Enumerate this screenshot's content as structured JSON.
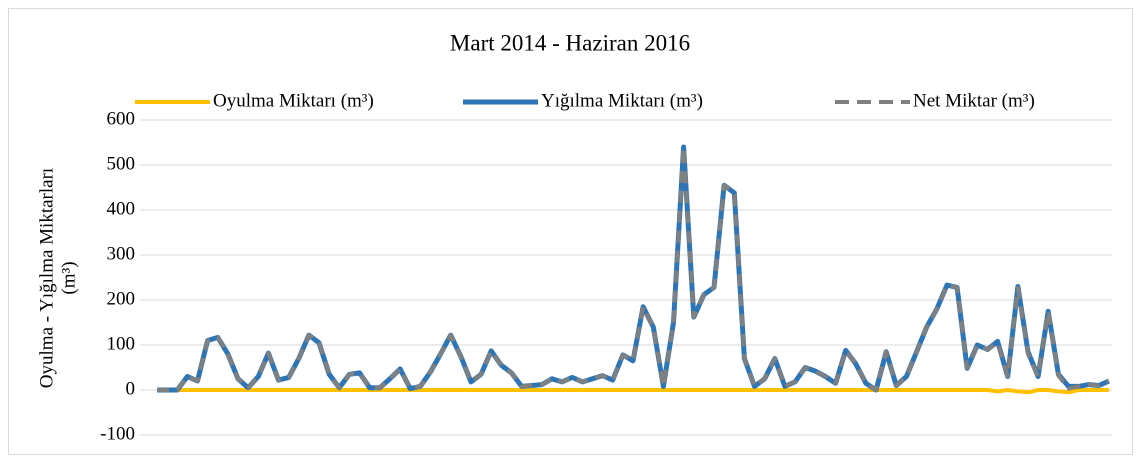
{
  "chart_data": {
    "type": "line",
    "title": "Mart 2014 - Haziran 2016",
    "ylabel": [
      "Oyulma - Yığılma Miktarları",
      "(m³)"
    ],
    "ylim": [
      -100,
      600
    ],
    "yticks": [
      -100,
      0,
      100,
      200,
      300,
      400,
      500,
      600
    ],
    "grid": true,
    "legend": "top",
    "series": [
      {
        "name": "Oyulma Miktarı (m³)",
        "color": "#ffc000",
        "dash": false,
        "values": [
          0,
          0,
          0,
          0,
          0,
          0,
          0,
          0,
          0,
          0,
          0,
          0,
          0,
          0,
          0,
          0,
          0,
          0,
          0,
          0,
          0,
          0,
          0,
          0,
          0,
          0,
          0,
          0,
          0,
          0,
          0,
          0,
          0,
          0,
          0,
          0,
          0,
          0,
          0,
          0,
          0,
          0,
          0,
          0,
          0,
          0,
          0,
          0,
          0,
          0,
          0,
          0,
          0,
          0,
          0,
          0,
          0,
          0,
          0,
          0,
          0,
          0,
          0,
          0,
          0,
          0,
          0,
          0,
          0,
          0,
          0,
          0,
          0,
          0,
          0,
          0,
          0,
          0,
          0,
          0,
          0,
          0,
          0,
          -3,
          0,
          -3,
          -5,
          0,
          0,
          -3,
          -5,
          0,
          0,
          0,
          0
        ]
      },
      {
        "name": "Yığılma Miktarı (m³)",
        "color": "#2e75b6",
        "dash": false,
        "values": [
          0,
          0,
          0,
          30,
          20,
          110,
          117,
          80,
          25,
          5,
          30,
          82,
          22,
          28,
          70,
          122,
          105,
          35,
          5,
          35,
          38,
          5,
          5,
          25,
          47,
          3,
          8,
          40,
          80,
          122,
          75,
          18,
          35,
          87,
          55,
          38,
          8,
          10,
          12,
          25,
          18,
          28,
          18,
          25,
          32,
          22,
          78,
          65,
          185,
          140,
          8,
          150,
          540,
          162,
          212,
          228,
          455,
          438,
          70,
          8,
          25,
          70,
          8,
          18,
          50,
          42,
          30,
          15,
          88,
          58,
          15,
          0,
          85,
          10,
          30,
          85,
          140,
          180,
          233,
          228,
          48,
          100,
          90,
          108,
          30,
          230,
          85,
          30,
          175,
          35,
          8,
          8,
          12,
          10,
          20
        ]
      },
      {
        "name": "Net Miktar (m³)",
        "color": "#808080",
        "dash": true,
        "values": [
          0,
          0,
          0,
          30,
          20,
          110,
          117,
          80,
          25,
          5,
          30,
          82,
          22,
          28,
          70,
          122,
          105,
          35,
          5,
          35,
          38,
          5,
          5,
          25,
          47,
          3,
          8,
          40,
          80,
          122,
          75,
          18,
          35,
          87,
          55,
          38,
          8,
          10,
          12,
          25,
          18,
          28,
          18,
          25,
          32,
          22,
          78,
          65,
          185,
          140,
          8,
          150,
          540,
          162,
          212,
          228,
          455,
          438,
          70,
          8,
          25,
          70,
          8,
          18,
          50,
          42,
          30,
          15,
          88,
          58,
          15,
          0,
          85,
          10,
          30,
          85,
          140,
          180,
          233,
          228,
          48,
          100,
          90,
          105,
          30,
          227,
          80,
          30,
          175,
          32,
          3,
          8,
          12,
          10,
          20
        ]
      }
    ]
  }
}
